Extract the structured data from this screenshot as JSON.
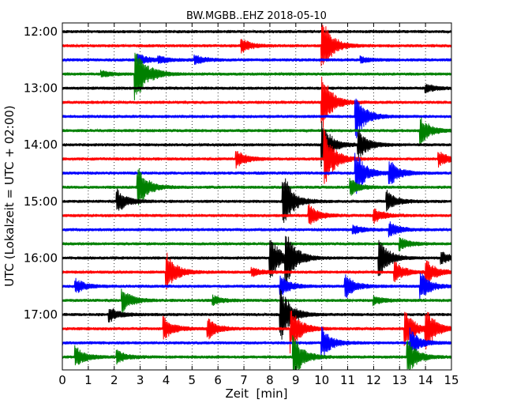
{
  "chart_data": {
    "type": "line",
    "title": "BW.MGBB..EHZ 2018-05-10",
    "xlabel": "Zeit  [min]",
    "ylabel": "UTC (Lokalzeit = UTC + 02:00)",
    "xlim": [
      0,
      15
    ],
    "x_ticks": [
      "0",
      "1",
      "2",
      "3",
      "4",
      "5",
      "6",
      "7",
      "8",
      "9",
      "10",
      "11",
      "12",
      "13",
      "14",
      "15"
    ],
    "y_ticks": [
      {
        "label": "12:00",
        "row": 0
      },
      {
        "label": "13:00",
        "row": 4
      },
      {
        "label": "14:00",
        "row": 8
      },
      {
        "label": "15:00",
        "row": 12
      },
      {
        "label": "16:00",
        "row": 16
      },
      {
        "label": "17:00",
        "row": 20
      }
    ],
    "row_interval_minutes": 15,
    "trace_colors": [
      "#000000",
      "#ff0000",
      "#0000ff",
      "#008000"
    ],
    "vertical_grid": "dotted",
    "rows": [
      {
        "start": "12:00",
        "color": "#000000",
        "events": []
      },
      {
        "start": "12:15",
        "color": "#ff0000",
        "events": [
          {
            "t": 6.9,
            "amp": 9
          },
          {
            "t": 10.0,
            "amp": 40
          }
        ]
      },
      {
        "start": "12:30",
        "color": "#0000ff",
        "events": [
          {
            "t": 2.9,
            "amp": 8
          },
          {
            "t": 3.7,
            "amp": 4
          },
          {
            "t": 5.1,
            "amp": 6
          },
          {
            "t": 11.5,
            "amp": 4
          }
        ]
      },
      {
        "start": "12:45",
        "color": "#008000",
        "events": [
          {
            "t": 1.5,
            "amp": 4
          },
          {
            "t": 2.8,
            "amp": 40
          },
          {
            "t": 3.5,
            "amp": 3
          }
        ]
      },
      {
        "start": "13:00",
        "color": "#000000",
        "events": [
          {
            "t": 14.0,
            "amp": 6
          }
        ]
      },
      {
        "start": "13:15",
        "color": "#ff0000",
        "events": [
          {
            "t": 10.0,
            "amp": 40
          }
        ]
      },
      {
        "start": "13:30",
        "color": "#0000ff",
        "events": [
          {
            "t": 11.3,
            "amp": 30
          }
        ]
      },
      {
        "start": "13:45",
        "color": "#008000",
        "events": [
          {
            "t": 13.8,
            "amp": 18
          }
        ]
      },
      {
        "start": "14:00",
        "color": "#000000",
        "events": [
          {
            "t": 10.0,
            "amp": 30
          },
          {
            "t": 11.4,
            "amp": 20
          }
        ]
      },
      {
        "start": "14:15",
        "color": "#ff0000",
        "events": [
          {
            "t": 6.7,
            "amp": 12
          },
          {
            "t": 10.1,
            "amp": 40
          },
          {
            "t": 14.5,
            "amp": 10
          }
        ]
      },
      {
        "start": "14:30",
        "color": "#0000ff",
        "events": [
          {
            "t": 11.3,
            "amp": 30
          },
          {
            "t": 12.6,
            "amp": 18
          }
        ]
      },
      {
        "start": "14:45",
        "color": "#008000",
        "events": [
          {
            "t": 2.9,
            "amp": 28
          },
          {
            "t": 11.1,
            "amp": 10
          }
        ]
      },
      {
        "start": "15:00",
        "color": "#000000",
        "events": [
          {
            "t": 2.1,
            "amp": 16
          },
          {
            "t": 8.5,
            "amp": 40
          },
          {
            "t": 12.5,
            "amp": 14
          }
        ]
      },
      {
        "start": "15:15",
        "color": "#ff0000",
        "events": [
          {
            "t": 9.5,
            "amp": 14
          },
          {
            "t": 12.0,
            "amp": 10
          }
        ]
      },
      {
        "start": "15:30",
        "color": "#0000ff",
        "events": [
          {
            "t": 11.2,
            "amp": 6
          },
          {
            "t": 12.6,
            "amp": 10
          }
        ]
      },
      {
        "start": "15:45",
        "color": "#008000",
        "events": [
          {
            "t": 13.0,
            "amp": 8
          }
        ]
      },
      {
        "start": "16:00",
        "color": "#000000",
        "events": [
          {
            "t": 8.0,
            "amp": 30
          },
          {
            "t": 8.6,
            "amp": 36
          },
          {
            "t": 12.2,
            "amp": 26
          },
          {
            "t": 14.6,
            "amp": 8
          }
        ]
      },
      {
        "start": "16:15",
        "color": "#ff0000",
        "events": [
          {
            "t": 4.0,
            "amp": 26
          },
          {
            "t": 7.3,
            "amp": 6
          },
          {
            "t": 12.8,
            "amp": 14
          },
          {
            "t": 14.0,
            "amp": 18
          }
        ]
      },
      {
        "start": "16:30",
        "color": "#0000ff",
        "events": [
          {
            "t": 0.5,
            "amp": 10
          },
          {
            "t": 8.4,
            "amp": 14
          },
          {
            "t": 10.9,
            "amp": 16
          },
          {
            "t": 13.8,
            "amp": 18
          }
        ]
      },
      {
        "start": "16:45",
        "color": "#008000",
        "events": [
          {
            "t": 2.3,
            "amp": 16
          },
          {
            "t": 5.8,
            "amp": 6
          },
          {
            "t": 12.0,
            "amp": 6
          }
        ]
      },
      {
        "start": "17:00",
        "color": "#000000",
        "events": [
          {
            "t": 1.8,
            "amp": 10
          },
          {
            "t": 8.4,
            "amp": 40
          }
        ]
      },
      {
        "start": "17:15",
        "color": "#ff0000",
        "events": [
          {
            "t": 3.9,
            "amp": 16
          },
          {
            "t": 5.6,
            "amp": 14
          },
          {
            "t": 8.8,
            "amp": 30
          },
          {
            "t": 13.2,
            "amp": 26
          },
          {
            "t": 14.0,
            "amp": 28
          }
        ]
      },
      {
        "start": "17:30",
        "color": "#0000ff",
        "events": [
          {
            "t": 10.0,
            "amp": 20
          },
          {
            "t": 13.4,
            "amp": 18
          }
        ]
      },
      {
        "start": "17:45",
        "color": "#008000",
        "events": [
          {
            "t": 0.5,
            "amp": 14
          },
          {
            "t": 2.1,
            "amp": 8
          },
          {
            "t": 8.9,
            "amp": 30
          },
          {
            "t": 13.3,
            "amp": 24
          }
        ]
      }
    ]
  }
}
